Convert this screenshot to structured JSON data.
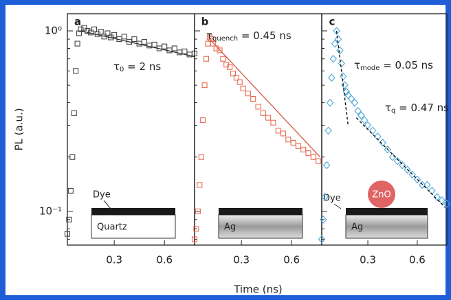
{
  "chart_data": [
    {
      "type": "scatter",
      "panel": "a",
      "ylabel": "PL (a.u.)",
      "ylog": true,
      "xlim": [
        0.02,
        0.78
      ],
      "ylim": [
        0.065,
        1.245
      ],
      "xticks": [
        0.3,
        0.6
      ],
      "yticks": [
        {
          "value": 1,
          "label": "10⁰"
        },
        {
          "value": 0.1,
          "label": "10⁻¹"
        }
      ],
      "show_ytick_labels": true,
      "yminor": [
        0.07,
        0.08,
        0.09,
        0.2,
        0.3,
        0.4,
        0.5,
        0.6,
        0.7,
        0.8,
        0.9
      ],
      "x": [
        0.02,
        0.03,
        0.04,
        0.05,
        0.06,
        0.07,
        0.08,
        0.09,
        0.1,
        0.12,
        0.14,
        0.16,
        0.18,
        0.2,
        0.22,
        0.24,
        0.26,
        0.28,
        0.3,
        0.33,
        0.36,
        0.39,
        0.42,
        0.45,
        0.48,
        0.51,
        0.54,
        0.57,
        0.6,
        0.63,
        0.66,
        0.69,
        0.72,
        0.75,
        0.78
      ],
      "series": [
        {
          "color": "#444444",
          "marker": "square",
          "values": [
            0.075,
            0.09,
            0.13,
            0.2,
            0.35,
            0.6,
            0.85,
            0.97,
            1.02,
            1.04,
            1.0,
            0.98,
            1.02,
            0.96,
            0.99,
            0.93,
            0.97,
            0.92,
            0.95,
            0.9,
            0.93,
            0.87,
            0.9,
            0.85,
            0.87,
            0.83,
            0.84,
            0.8,
            0.82,
            0.78,
            0.8,
            0.76,
            0.77,
            0.74,
            0.75
          ]
        }
      ],
      "fits": [
        {
          "x": [
            0.1,
            0.78
          ],
          "values": [
            1.0,
            0.72
          ],
          "color": "#333333",
          "dashed": false
        }
      ],
      "annotations": [
        {
          "symbol": "τ",
          "subscript": "0",
          "text": " = 2 ns"
        }
      ],
      "inset": {
        "layer": "Dye",
        "substrate": "Quartz"
      }
    },
    {
      "type": "scatter",
      "panel": "b",
      "xlabel": "Time (ns)",
      "ylog": true,
      "xlim": [
        0.02,
        0.78
      ],
      "ylim": [
        0.065,
        1.245
      ],
      "xticks": [
        0.3,
        0.6
      ],
      "yticks": [
        1,
        0.1
      ],
      "show_ytick_labels": false,
      "yminor": [
        0.07,
        0.08,
        0.09,
        0.2,
        0.3,
        0.4,
        0.5,
        0.6,
        0.7,
        0.8,
        0.9
      ],
      "x": [
        0.02,
        0.03,
        0.04,
        0.05,
        0.06,
        0.07,
        0.08,
        0.09,
        0.1,
        0.11,
        0.12,
        0.13,
        0.15,
        0.17,
        0.19,
        0.21,
        0.23,
        0.25,
        0.27,
        0.29,
        0.31,
        0.34,
        0.37,
        0.4,
        0.43,
        0.46,
        0.49,
        0.52,
        0.55,
        0.58,
        0.61,
        0.64,
        0.67,
        0.7,
        0.73,
        0.76
      ],
      "series": [
        {
          "color": "#e8684f",
          "marker": "square",
          "values": [
            0.07,
            0.08,
            0.1,
            0.14,
            0.2,
            0.32,
            0.5,
            0.7,
            0.85,
            0.92,
            0.9,
            0.85,
            0.8,
            0.78,
            0.7,
            0.65,
            0.63,
            0.58,
            0.55,
            0.52,
            0.48,
            0.45,
            0.42,
            0.38,
            0.35,
            0.33,
            0.31,
            0.28,
            0.27,
            0.25,
            0.24,
            0.23,
            0.22,
            0.21,
            0.2,
            0.19
          ]
        }
      ],
      "fits": [
        {
          "x": [
            0.11,
            0.77
          ],
          "values": [
            0.9,
            0.2
          ],
          "color": "#d9604a",
          "dashed": false
        }
      ],
      "annotations": [
        {
          "symbol": "τ",
          "subscript": "quench",
          "text": " = 0.45 ns"
        }
      ],
      "inset": {
        "substrate": "Ag"
      }
    },
    {
      "type": "scatter",
      "panel": "c",
      "ylog": true,
      "xlim": [
        0.02,
        0.78
      ],
      "ylim": [
        0.065,
        1.245
      ],
      "xticks": [
        0.3,
        0.6
      ],
      "yticks": [
        1,
        0.1
      ],
      "show_ytick_labels": false,
      "yminor": [
        0.07,
        0.08,
        0.09,
        0.2,
        0.3,
        0.4,
        0.5,
        0.6,
        0.7,
        0.8,
        0.9
      ],
      "x": [
        0.02,
        0.03,
        0.04,
        0.05,
        0.06,
        0.07,
        0.08,
        0.09,
        0.1,
        0.11,
        0.12,
        0.13,
        0.14,
        0.15,
        0.16,
        0.17,
        0.18,
        0.2,
        0.22,
        0.24,
        0.26,
        0.28,
        0.3,
        0.33,
        0.36,
        0.39,
        0.42,
        0.45,
        0.48,
        0.51,
        0.54,
        0.57,
        0.6,
        0.63,
        0.66,
        0.69,
        0.72,
        0.75,
        0.78
      ],
      "series": [
        {
          "color": "#4aa6d8",
          "marker": "diamond",
          "values": [
            0.07,
            0.09,
            0.12,
            0.18,
            0.28,
            0.4,
            0.55,
            0.7,
            0.85,
            1.0,
            0.9,
            0.78,
            0.66,
            0.56,
            0.5,
            0.46,
            0.44,
            0.42,
            0.4,
            0.36,
            0.34,
            0.32,
            0.3,
            0.28,
            0.26,
            0.24,
            0.22,
            0.2,
            0.19,
            0.18,
            0.17,
            0.16,
            0.15,
            0.14,
            0.14,
            0.13,
            0.12,
            0.115,
            0.11
          ]
        }
      ],
      "fits": [
        {
          "x": [
            0.11,
            0.18
          ],
          "values": [
            1.0,
            0.3
          ],
          "color": "#111111",
          "dashed": true
        },
        {
          "x": [
            0.23,
            0.77
          ],
          "values": [
            0.33,
            0.105
          ],
          "color": "#111111",
          "dashed": true
        }
      ],
      "annotations": [
        {
          "symbol": "τ",
          "subscript": "mode",
          "text": " = 0.05 ns"
        },
        {
          "symbol": "τ",
          "subscript": "q",
          "text": " = 0.47 ns"
        }
      ],
      "inset": {
        "layer": "Dye",
        "particle": "ZnO",
        "substrate": "Ag"
      }
    }
  ]
}
